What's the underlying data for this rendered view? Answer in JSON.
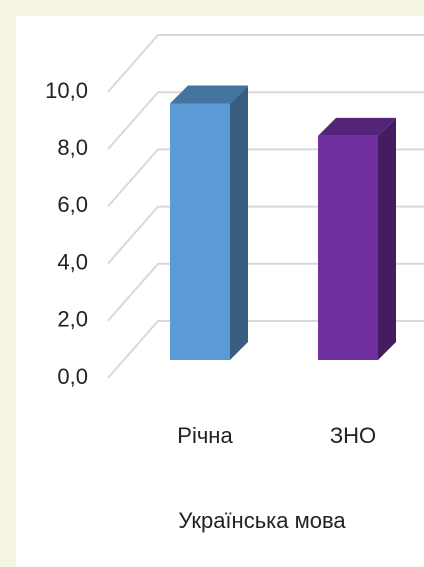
{
  "chart_data": {
    "type": "bar3d",
    "categories": [
      "Річна",
      "ЗНО"
    ],
    "series": [
      {
        "name": "Українська мова",
        "colors": [
          "#5b9bd5",
          "#7030a0"
        ],
        "values": [
          9.5,
          8.3
        ]
      }
    ],
    "x_label": "Українська мова",
    "ylim": [
      0,
      10
    ],
    "yticks": [
      {
        "value": 0,
        "label": "0,0"
      },
      {
        "value": 2,
        "label": "2,0"
      },
      {
        "value": 4,
        "label": "4,0"
      },
      {
        "value": 6,
        "label": "6,0"
      },
      {
        "value": 8,
        "label": "8,0"
      },
      {
        "value": 10,
        "label": "10,0"
      }
    ],
    "grid": true
  }
}
